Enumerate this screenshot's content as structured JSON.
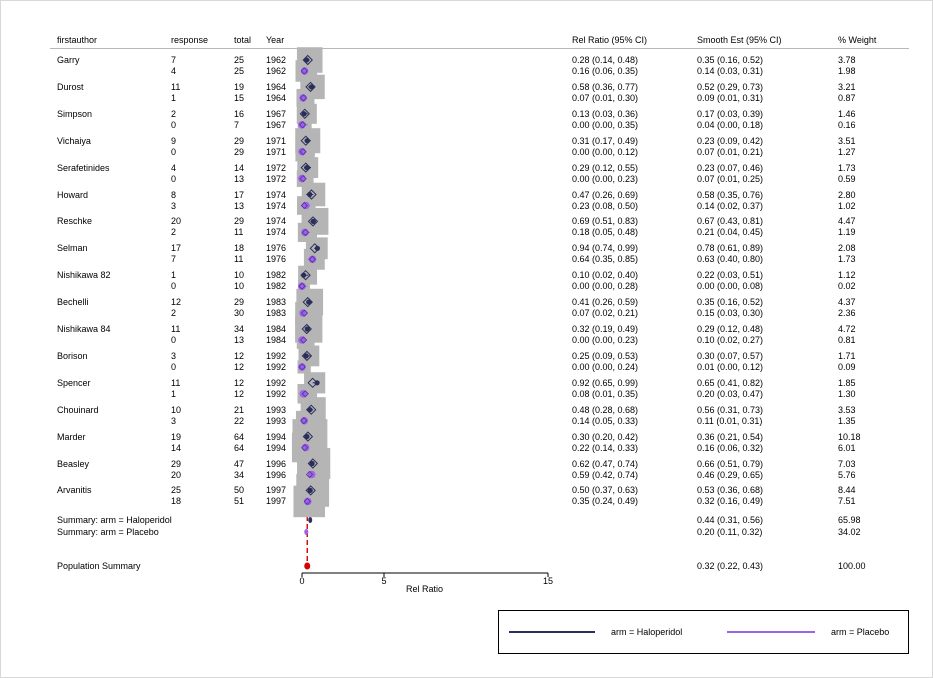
{
  "headers": {
    "author": "firstauthor",
    "response": "response",
    "total": "total",
    "year": "Year",
    "rel": "Rel Ratio (95% CI)",
    "smooth": "Smooth Est (95% CI)",
    "weight": "% Weight"
  },
  "studies": [
    {
      "author": "Garry",
      "rows": [
        {
          "arm": "Haloperidol",
          "response": "7",
          "total": "25",
          "year": "1962",
          "rel": "0.28 (0.14, 0.48)",
          "smooth": "0.35 (0.16, 0.52)",
          "weight": "3.78",
          "est": 0.28,
          "lo": 0.14,
          "hi": 0.48,
          "sm": 0.35,
          "w": 3.78
        },
        {
          "arm": "Placebo",
          "response": "4",
          "total": "25",
          "year": "1962",
          "rel": "0.16 (0.06, 0.35)",
          "smooth": "0.14 (0.03, 0.31)",
          "weight": "1.98",
          "est": 0.16,
          "lo": 0.06,
          "hi": 0.35,
          "sm": 0.14,
          "w": 1.98
        }
      ]
    },
    {
      "author": "Durost",
      "rows": [
        {
          "arm": "Haloperidol",
          "response": "11",
          "total": "19",
          "year": "1964",
          "rel": "0.58 (0.36, 0.77)",
          "smooth": "0.52 (0.29, 0.73)",
          "weight": "3.21",
          "est": 0.58,
          "lo": 0.36,
          "hi": 0.77,
          "sm": 0.52,
          "w": 3.21
        },
        {
          "arm": "Placebo",
          "response": "1",
          "total": "15",
          "year": "1964",
          "rel": "0.07 (0.01, 0.30)",
          "smooth": "0.09 (0.01, 0.31)",
          "weight": "0.87",
          "est": 0.07,
          "lo": 0.01,
          "hi": 0.3,
          "sm": 0.09,
          "w": 0.87
        }
      ]
    },
    {
      "author": "Simpson",
      "rows": [
        {
          "arm": "Haloperidol",
          "response": "2",
          "total": "16",
          "year": "1967",
          "rel": "0.13 (0.03, 0.36)",
          "smooth": "0.17 (0.03, 0.39)",
          "weight": "1.46",
          "est": 0.13,
          "lo": 0.03,
          "hi": 0.36,
          "sm": 0.17,
          "w": 1.46
        },
        {
          "arm": "Placebo",
          "response": "0",
          "total": "7",
          "year": "1967",
          "rel": "0.00 (0.00, 0.35)",
          "smooth": "0.04 (0.00, 0.18)",
          "weight": "0.16",
          "est": 0.0,
          "lo": 0.0,
          "hi": 0.35,
          "sm": 0.04,
          "w": 0.16
        }
      ]
    },
    {
      "author": "Vichaiya",
      "rows": [
        {
          "arm": "Haloperidol",
          "response": "9",
          "total": "29",
          "year": "1971",
          "rel": "0.31 (0.17, 0.49)",
          "smooth": "0.23 (0.09, 0.42)",
          "weight": "3.51",
          "est": 0.31,
          "lo": 0.17,
          "hi": 0.49,
          "sm": 0.23,
          "w": 3.51
        },
        {
          "arm": "Placebo",
          "response": "0",
          "total": "29",
          "year": "1971",
          "rel": "0.00 (0.00, 0.12)",
          "smooth": "0.07 (0.01, 0.21)",
          "weight": "1.27",
          "est": 0.0,
          "lo": 0.0,
          "hi": 0.12,
          "sm": 0.07,
          "w": 1.27
        }
      ]
    },
    {
      "author": "Serafetinides",
      "rows": [
        {
          "arm": "Haloperidol",
          "response": "4",
          "total": "14",
          "year": "1972",
          "rel": "0.29 (0.12, 0.55)",
          "smooth": "0.23 (0.07, 0.46)",
          "weight": "1.73",
          "est": 0.29,
          "lo": 0.12,
          "hi": 0.55,
          "sm": 0.23,
          "w": 1.73
        },
        {
          "arm": "Placebo",
          "response": "0",
          "total": "13",
          "year": "1972",
          "rel": "0.00 (0.00, 0.23)",
          "smooth": "0.07 (0.01, 0.25)",
          "weight": "0.59",
          "est": 0.0,
          "lo": 0.0,
          "hi": 0.23,
          "sm": 0.07,
          "w": 0.59
        }
      ]
    },
    {
      "author": "Howard",
      "rows": [
        {
          "arm": "Haloperidol",
          "response": "8",
          "total": "17",
          "year": "1974",
          "rel": "0.47 (0.26, 0.69)",
          "smooth": "0.58 (0.35, 0.76)",
          "weight": "2.80",
          "est": 0.47,
          "lo": 0.26,
          "hi": 0.69,
          "sm": 0.58,
          "w": 2.8
        },
        {
          "arm": "Placebo",
          "response": "3",
          "total": "13",
          "year": "1974",
          "rel": "0.23 (0.08, 0.50)",
          "smooth": "0.14 (0.02, 0.37)",
          "weight": "1.02",
          "est": 0.23,
          "lo": 0.08,
          "hi": 0.5,
          "sm": 0.14,
          "w": 1.02
        }
      ]
    },
    {
      "author": "Reschke",
      "rows": [
        {
          "arm": "Haloperidol",
          "response": "20",
          "total": "29",
          "year": "1974",
          "rel": "0.69 (0.51, 0.83)",
          "smooth": "0.67 (0.43, 0.81)",
          "weight": "4.47",
          "est": 0.69,
          "lo": 0.51,
          "hi": 0.83,
          "sm": 0.67,
          "w": 4.47
        },
        {
          "arm": "Placebo",
          "response": "2",
          "total": "11",
          "year": "1974",
          "rel": "0.18 (0.05, 0.48)",
          "smooth": "0.21 (0.04, 0.45)",
          "weight": "1.19",
          "est": 0.18,
          "lo": 0.05,
          "hi": 0.48,
          "sm": 0.21,
          "w": 1.19
        }
      ]
    },
    {
      "author": "Selman",
      "rows": [
        {
          "arm": "Haloperidol",
          "response": "17",
          "total": "18",
          "year": "1976",
          "rel": "0.94 (0.74, 0.99)",
          "smooth": "0.78 (0.61, 0.89)",
          "weight": "2.08",
          "est": 0.94,
          "lo": 0.74,
          "hi": 0.99,
          "sm": 0.78,
          "w": 2.08
        },
        {
          "arm": "Placebo",
          "response": "7",
          "total": "11",
          "year": "1976",
          "rel": "0.64 (0.35, 0.85)",
          "smooth": "0.63 (0.40, 0.80)",
          "weight": "1.73",
          "est": 0.64,
          "lo": 0.35,
          "hi": 0.85,
          "sm": 0.63,
          "w": 1.73
        }
      ]
    },
    {
      "author": "Nishikawa 82",
      "rows": [
        {
          "arm": "Haloperidol",
          "response": "1",
          "total": "10",
          "year": "1982",
          "rel": "0.10 (0.02, 0.40)",
          "smooth": "0.22 (0.03, 0.51)",
          "weight": "1.12",
          "est": 0.1,
          "lo": 0.02,
          "hi": 0.4,
          "sm": 0.22,
          "w": 1.12
        },
        {
          "arm": "Placebo",
          "response": "0",
          "total": "10",
          "year": "1982",
          "rel": "0.00 (0.00, 0.28)",
          "smooth": "0.00 (0.00, 0.08)",
          "weight": "0.02",
          "est": 0.0,
          "lo": 0.0,
          "hi": 0.28,
          "sm": 0.0,
          "w": 0.02
        }
      ]
    },
    {
      "author": "Bechelli",
      "rows": [
        {
          "arm": "Haloperidol",
          "response": "12",
          "total": "29",
          "year": "1983",
          "rel": "0.41 (0.26, 0.59)",
          "smooth": "0.35 (0.16, 0.52)",
          "weight": "4.37",
          "est": 0.41,
          "lo": 0.26,
          "hi": 0.59,
          "sm": 0.35,
          "w": 4.37
        },
        {
          "arm": "Placebo",
          "response": "2",
          "total": "30",
          "year": "1983",
          "rel": "0.07 (0.02, 0.21)",
          "smooth": "0.15 (0.03, 0.30)",
          "weight": "2.36",
          "est": 0.07,
          "lo": 0.02,
          "hi": 0.21,
          "sm": 0.15,
          "w": 2.36
        }
      ]
    },
    {
      "author": "Nishikawa 84",
      "rows": [
        {
          "arm": "Haloperidol",
          "response": "11",
          "total": "34",
          "year": "1984",
          "rel": "0.32 (0.19, 0.49)",
          "smooth": "0.29 (0.12, 0.48)",
          "weight": "4.72",
          "est": 0.32,
          "lo": 0.19,
          "hi": 0.49,
          "sm": 0.29,
          "w": 4.72
        },
        {
          "arm": "Placebo",
          "response": "0",
          "total": "13",
          "year": "1984",
          "rel": "0.00 (0.00, 0.23)",
          "smooth": "0.10 (0.02, 0.27)",
          "weight": "0.81",
          "est": 0.0,
          "lo": 0.0,
          "hi": 0.23,
          "sm": 0.1,
          "w": 0.81
        }
      ]
    },
    {
      "author": "Borison",
      "rows": [
        {
          "arm": "Haloperidol",
          "response": "3",
          "total": "12",
          "year": "1992",
          "rel": "0.25 (0.09, 0.53)",
          "smooth": "0.30 (0.07, 0.57)",
          "weight": "1.71",
          "est": 0.25,
          "lo": 0.09,
          "hi": 0.53,
          "sm": 0.3,
          "w": 1.71
        },
        {
          "arm": "Placebo",
          "response": "0",
          "total": "12",
          "year": "1992",
          "rel": "0.00 (0.00, 0.24)",
          "smooth": "0.01 (0.00, 0.12)",
          "weight": "0.09",
          "est": 0.0,
          "lo": 0.0,
          "hi": 0.24,
          "sm": 0.01,
          "w": 0.09
        }
      ]
    },
    {
      "author": "Spencer",
      "rows": [
        {
          "arm": "Haloperidol",
          "response": "11",
          "total": "12",
          "year": "1992",
          "rel": "0.92 (0.65, 0.99)",
          "smooth": "0.65 (0.41, 0.82)",
          "weight": "1.85",
          "est": 0.92,
          "lo": 0.65,
          "hi": 0.99,
          "sm": 0.65,
          "w": 1.85
        },
        {
          "arm": "Placebo",
          "response": "1",
          "total": "12",
          "year": "1992",
          "rel": "0.08 (0.01, 0.35)",
          "smooth": "0.20 (0.03, 0.47)",
          "weight": "1.30",
          "est": 0.08,
          "lo": 0.01,
          "hi": 0.35,
          "sm": 0.2,
          "w": 1.3
        }
      ]
    },
    {
      "author": "Chouinard",
      "rows": [
        {
          "arm": "Haloperidol",
          "response": "10",
          "total": "21",
          "year": "1993",
          "rel": "0.48 (0.28, 0.68)",
          "smooth": "0.56 (0.31, 0.73)",
          "weight": "3.53",
          "est": 0.48,
          "lo": 0.28,
          "hi": 0.68,
          "sm": 0.56,
          "w": 3.53
        },
        {
          "arm": "Placebo",
          "response": "3",
          "total": "22",
          "year": "1993",
          "rel": "0.14 (0.05, 0.33)",
          "smooth": "0.11 (0.01, 0.31)",
          "weight": "1.35",
          "est": 0.14,
          "lo": 0.05,
          "hi": 0.33,
          "sm": 0.11,
          "w": 1.35
        }
      ]
    },
    {
      "author": "Marder",
      "rows": [
        {
          "arm": "Haloperidol",
          "response": "19",
          "total": "64",
          "year": "1994",
          "rel": "0.30 (0.20, 0.42)",
          "smooth": "0.36 (0.21, 0.54)",
          "weight": "10.18",
          "est": 0.3,
          "lo": 0.2,
          "hi": 0.42,
          "sm": 0.36,
          "w": 10.18
        },
        {
          "arm": "Placebo",
          "response": "14",
          "total": "64",
          "year": "1994",
          "rel": "0.22 (0.14, 0.33)",
          "smooth": "0.16 (0.06, 0.32)",
          "weight": "6.01",
          "est": 0.22,
          "lo": 0.14,
          "hi": 0.33,
          "sm": 0.16,
          "w": 6.01
        }
      ]
    },
    {
      "author": "Beasley",
      "rows": [
        {
          "arm": "Haloperidol",
          "response": "29",
          "total": "47",
          "year": "1996",
          "rel": "0.62 (0.47, 0.74)",
          "smooth": "0.66 (0.51, 0.79)",
          "weight": "7.03",
          "est": 0.62,
          "lo": 0.47,
          "hi": 0.74,
          "sm": 0.66,
          "w": 7.03
        },
        {
          "arm": "Placebo",
          "response": "20",
          "total": "34",
          "year": "1996",
          "rel": "0.59 (0.42, 0.74)",
          "smooth": "0.46 (0.29, 0.65)",
          "weight": "5.76",
          "est": 0.59,
          "lo": 0.42,
          "hi": 0.74,
          "sm": 0.46,
          "w": 5.76
        }
      ]
    },
    {
      "author": "Arvanitis",
      "rows": [
        {
          "arm": "Haloperidol",
          "response": "25",
          "total": "50",
          "year": "1997",
          "rel": "0.50 (0.37, 0.63)",
          "smooth": "0.53 (0.36, 0.68)",
          "weight": "8.44",
          "est": 0.5,
          "lo": 0.37,
          "hi": 0.63,
          "sm": 0.53,
          "w": 8.44
        },
        {
          "arm": "Placebo",
          "response": "18",
          "total": "51",
          "year": "1997",
          "rel": "0.35 (0.24, 0.49)",
          "smooth": "0.32 (0.16, 0.49)",
          "weight": "7.51",
          "est": 0.35,
          "lo": 0.24,
          "hi": 0.49,
          "sm": 0.32,
          "w": 7.51
        }
      ]
    }
  ],
  "summaries": [
    {
      "label": "Summary: arm = Haloperidol",
      "smooth": "0.44 (0.31, 0.56)",
      "weight": "65.98",
      "est": 0.44,
      "arm": "Haloperidol"
    },
    {
      "label": "Summary: arm = Placebo",
      "smooth": "0.20 (0.11, 0.32)",
      "weight": "34.02",
      "est": 0.2,
      "arm": "Placebo"
    }
  ],
  "population": {
    "label": "Population Summary",
    "smooth": "0.32 (0.22, 0.43)",
    "weight": "100.00",
    "est": 0.32
  },
  "chart_data": {
    "type": "forest",
    "xlabel": "Rel Ratio",
    "xlim": [
      0,
      15
    ],
    "xticks": [
      "0",
      "5",
      "15"
    ],
    "xtick_values": [
      0,
      5,
      15
    ],
    "reference_line": 0.32,
    "legend": [
      {
        "label": "arm = Haloperidol",
        "color": "#2b2e5a"
      },
      {
        "label": "arm = Placebo",
        "color": "#9b63e6"
      }
    ],
    "colors": {
      "haloperidol": "#2b2e5a",
      "placebo": "#9b63e6",
      "box": "#b5b5b5",
      "reference": "#d40000"
    }
  }
}
